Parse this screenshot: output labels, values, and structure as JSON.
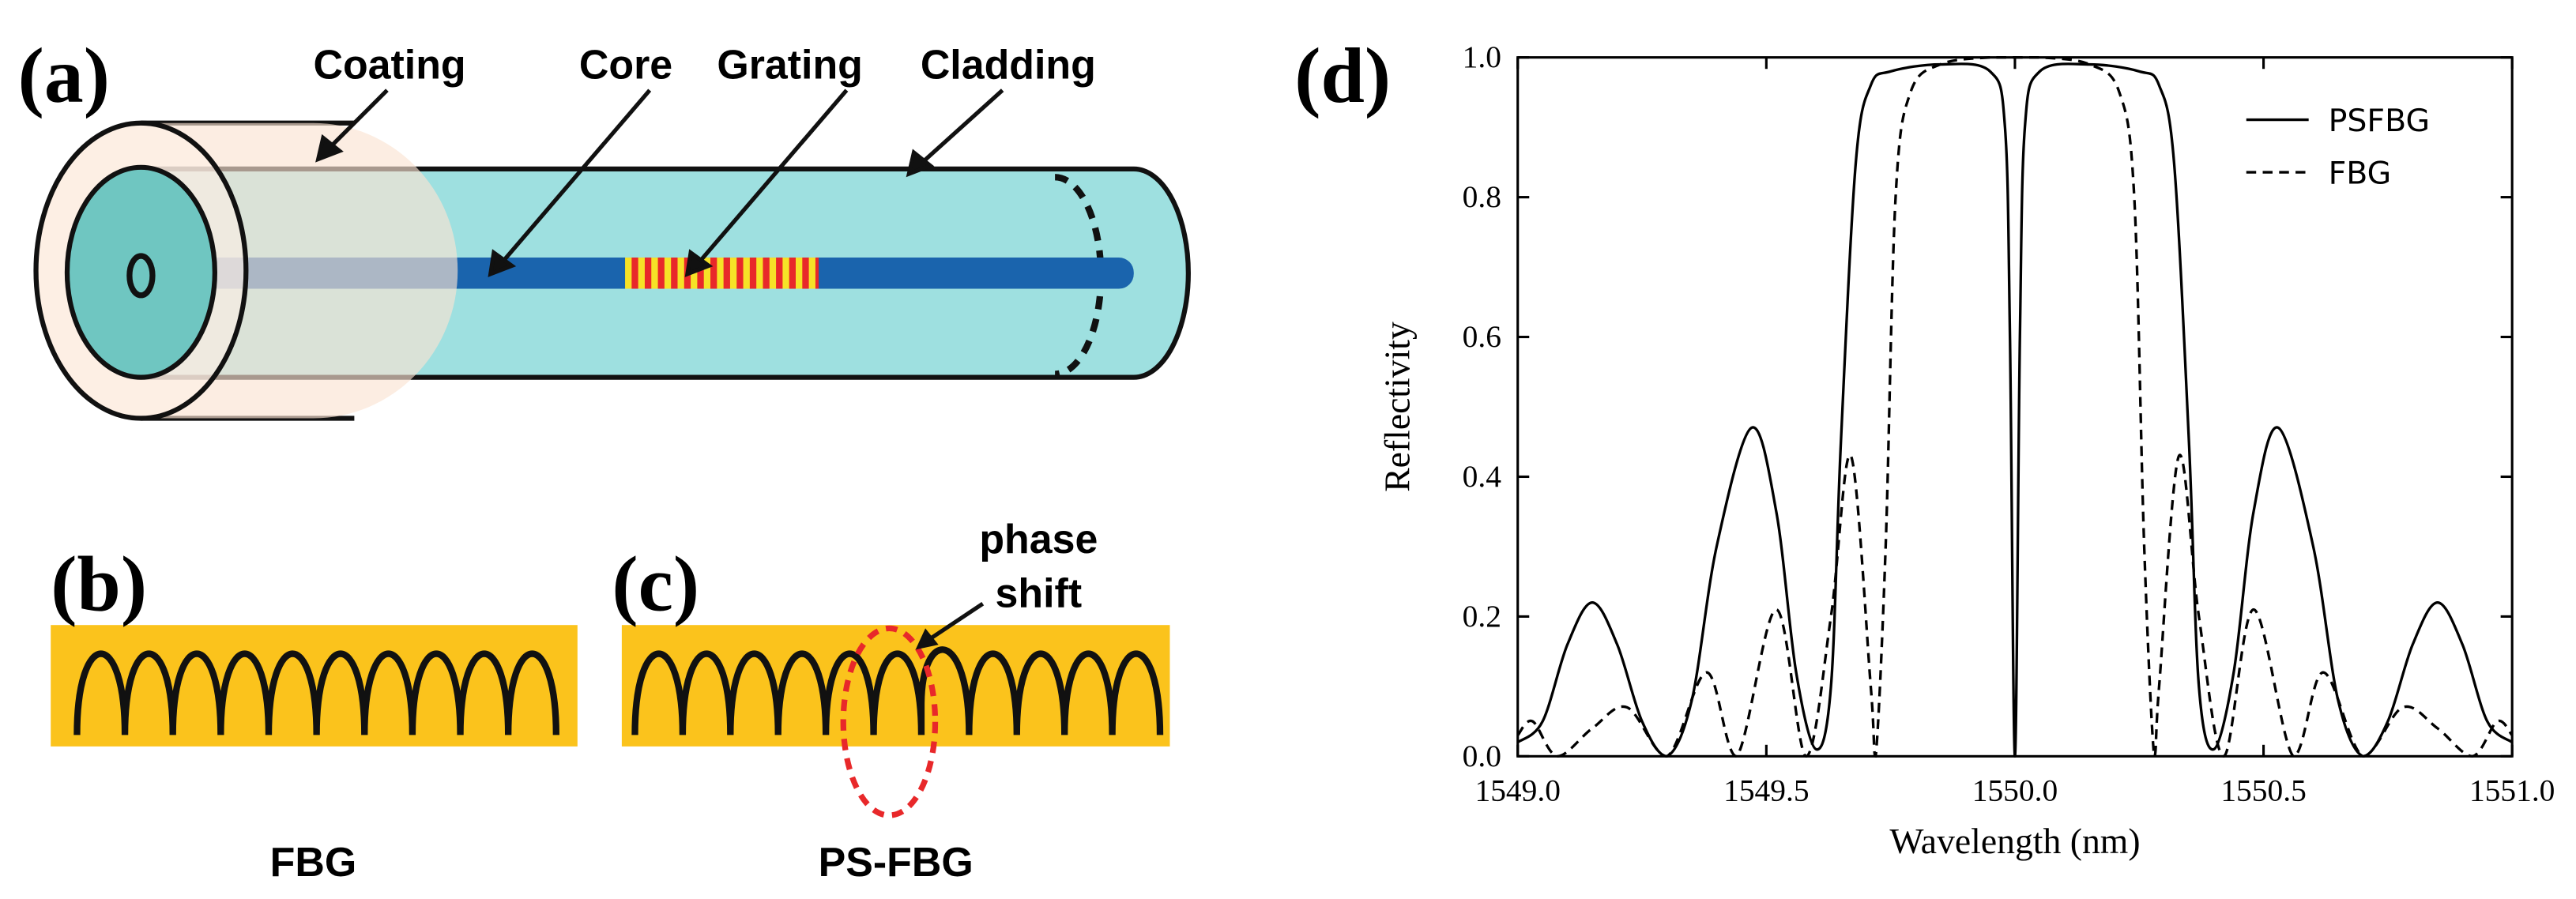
{
  "panels": {
    "a": {
      "label": "(a)",
      "labels": [
        "Coating",
        "Core",
        "Grating",
        "Cladding"
      ]
    },
    "b": {
      "label": "(b)",
      "caption": "FBG"
    },
    "c": {
      "label": "(c)",
      "caption": "PS-FBG",
      "annotation": [
        "phase",
        "shift"
      ]
    }
  },
  "chart_data": {
    "type": "line",
    "label": "(d)",
    "x_label": "Wavelength (nm)",
    "y_label": "Reflectivity",
    "xlim": [
      1549,
      1551
    ],
    "ylim": [
      0,
      1
    ],
    "xticks": [
      {
        "value": 1549,
        "label": "1549.0"
      },
      {
        "value": 1549.5,
        "label": "1549.5"
      },
      {
        "value": 1550,
        "label": "1550.0"
      },
      {
        "value": 1550.5,
        "label": "1550.5"
      },
      {
        "value": 1551,
        "label": "1551.0"
      }
    ],
    "yticks": [
      {
        "value": 0,
        "label": "0.0"
      },
      {
        "value": 0.2,
        "label": "0.2"
      },
      {
        "value": 0.4,
        "label": "0.4"
      },
      {
        "value": 0.6,
        "label": "0.6"
      },
      {
        "value": 0.8,
        "label": "0.8"
      },
      {
        "value": 1,
        "label": "1.0"
      }
    ],
    "legend": "upper right",
    "series": [
      {
        "name": "PSFBG",
        "color": "#000000",
        "dash": "solid",
        "x": [
          1549.0,
          1549.05,
          1549.1,
          1549.15,
          1549.2,
          1549.25,
          1549.3,
          1549.35,
          1549.4,
          1549.47,
          1549.52,
          1549.56,
          1549.6,
          1549.63,
          1549.65,
          1549.68,
          1549.71,
          1549.75,
          1549.85,
          1549.95,
          1549.98,
          1549.99,
          1550.0,
          1550.01,
          1550.02,
          1550.05,
          1550.15,
          1550.25,
          1550.29,
          1550.32,
          1550.35,
          1550.37,
          1550.4,
          1550.44,
          1550.48,
          1550.53,
          1550.6,
          1550.65,
          1550.7,
          1550.75,
          1550.8,
          1550.85,
          1550.9,
          1550.95,
          1551.0
        ],
        "values": [
          0.02,
          0.05,
          0.16,
          0.22,
          0.16,
          0.05,
          0.0,
          0.08,
          0.3,
          0.47,
          0.35,
          0.12,
          0.01,
          0.1,
          0.45,
          0.85,
          0.96,
          0.98,
          0.99,
          0.98,
          0.9,
          0.6,
          0.0,
          0.6,
          0.9,
          0.98,
          0.99,
          0.98,
          0.96,
          0.85,
          0.45,
          0.1,
          0.01,
          0.12,
          0.35,
          0.47,
          0.3,
          0.08,
          0.0,
          0.05,
          0.16,
          0.22,
          0.16,
          0.05,
          0.02
        ]
      },
      {
        "name": "FBG",
        "color": "#000000",
        "dash": "dashed",
        "x": [
          1549.0,
          1549.03,
          1549.08,
          1549.15,
          1549.22,
          1549.3,
          1549.38,
          1549.44,
          1549.52,
          1549.58,
          1549.63,
          1549.67,
          1549.71,
          1549.72,
          1549.74,
          1549.76,
          1549.79,
          1549.85,
          1549.95,
          1550.05,
          1550.15,
          1550.21,
          1550.24,
          1550.26,
          1550.28,
          1550.29,
          1550.33,
          1550.37,
          1550.42,
          1550.48,
          1550.56,
          1550.62,
          1550.7,
          1550.78,
          1550.85,
          1550.92,
          1550.97,
          1551.0
        ],
        "values": [
          0.03,
          0.05,
          0.0,
          0.04,
          0.07,
          0.0,
          0.12,
          0.0,
          0.21,
          0.0,
          0.2,
          0.43,
          0.1,
          0.0,
          0.3,
          0.8,
          0.95,
          0.99,
          1.0,
          1.0,
          0.99,
          0.95,
          0.8,
          0.3,
          0.0,
          0.1,
          0.43,
          0.2,
          0.0,
          0.21,
          0.0,
          0.12,
          0.0,
          0.07,
          0.04,
          0.0,
          0.05,
          0.03
        ]
      }
    ]
  }
}
